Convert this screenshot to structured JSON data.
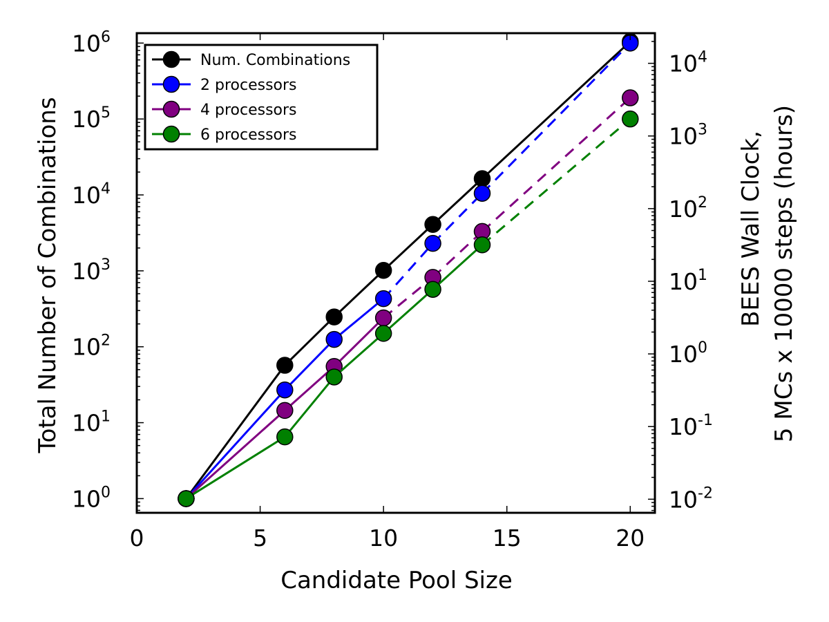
{
  "chart_data": {
    "type": "line",
    "xlabel": "Candidate Pool Size",
    "ylabel": "Total Number of Combinations",
    "y2label_line1": "BEES Wall Clock,",
    "y2label_line2": "5 MCs x 10000 steps (hours)",
    "xlim": [
      0,
      21
    ],
    "ylim": [
      0.65,
      1350000
    ],
    "y2lim": [
      0.0065,
      26000
    ],
    "yscale": "log",
    "y2scale": "log",
    "grid": false,
    "legend_position": "top-left",
    "xticks": [
      0,
      5,
      10,
      15,
      20
    ],
    "yticks": [
      {
        "value": 1,
        "base": "10",
        "exp": "0"
      },
      {
        "value": 10,
        "base": "10",
        "exp": "1"
      },
      {
        "value": 100,
        "base": "10",
        "exp": "2"
      },
      {
        "value": 1000,
        "base": "10",
        "exp": "3"
      },
      {
        "value": 10000,
        "base": "10",
        "exp": "4"
      },
      {
        "value": 100000,
        "base": "10",
        "exp": "5"
      },
      {
        "value": 1000000,
        "base": "10",
        "exp": "6"
      }
    ],
    "y2ticks": [
      {
        "value": 0.01,
        "base": "10",
        "exp": "-2"
      },
      {
        "value": 0.1,
        "base": "10",
        "exp": "-1"
      },
      {
        "value": 1,
        "base": "10",
        "exp": "0"
      },
      {
        "value": 10,
        "base": "10",
        "exp": "1"
      },
      {
        "value": 100,
        "base": "10",
        "exp": "2"
      },
      {
        "value": 1000,
        "base": "10",
        "exp": "3"
      },
      {
        "value": 10000,
        "base": "10",
        "exp": "4"
      }
    ],
    "series": [
      {
        "name": "Num. Combinations",
        "color": "#000000",
        "x": [
          2,
          6,
          8,
          10,
          12,
          14,
          20
        ],
        "y": [
          1,
          57,
          247,
          1013,
          4083,
          16369,
          1048555
        ],
        "solid_until": 20
      },
      {
        "name": "2 processors",
        "color": "#0000ff",
        "x": [
          2,
          6,
          8,
          10,
          12,
          14,
          20
        ],
        "y": [
          1,
          27,
          125,
          430,
          2300,
          10500,
          1000000
        ],
        "solid_until": 10
      },
      {
        "name": "4 processors",
        "color": "#800080",
        "x": [
          2,
          6,
          8,
          10,
          12,
          14,
          20
        ],
        "y": [
          1,
          14.5,
          55,
          240,
          820,
          3300,
          190000
        ],
        "solid_until": 10
      },
      {
        "name": "6 processors",
        "color": "#008000",
        "x": [
          2,
          6,
          8,
          10,
          12,
          14,
          20
        ],
        "y": [
          1,
          6.5,
          40,
          150,
          570,
          2200,
          100000
        ],
        "solid_until": 14
      }
    ]
  }
}
